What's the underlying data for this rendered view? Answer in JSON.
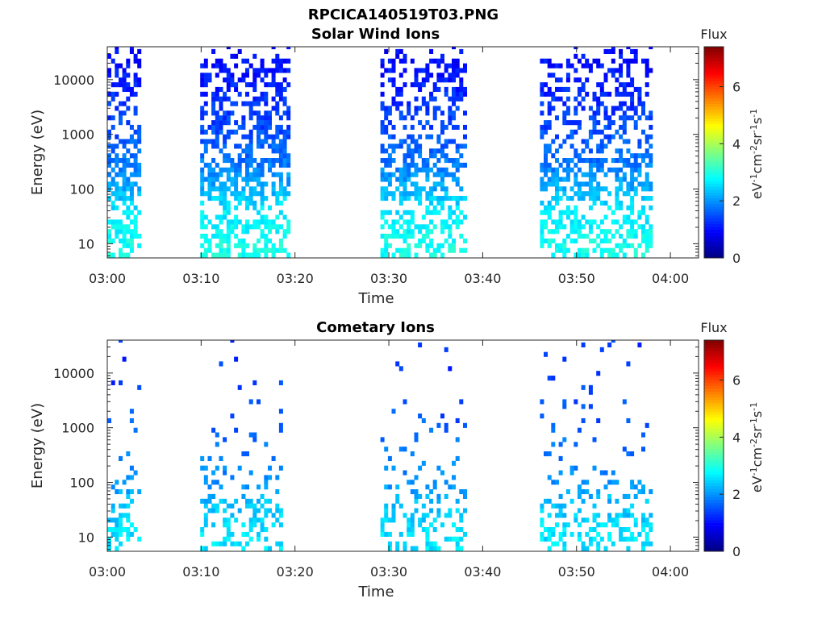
{
  "figure_title": "RPCICA140519T03.PNG",
  "chart_data": [
    {
      "type": "heatmap",
      "title": "Solar Wind Ions",
      "xlabel": "Time",
      "ylabel": "Energy (eV)",
      "x_ticks": [
        "03:00",
        "03:10",
        "03:20",
        "03:30",
        "03:40",
        "03:50",
        "04:00"
      ],
      "x_range_minutes": [
        0,
        63
      ],
      "y_scale": "log",
      "y_ticks": [
        "10",
        "100",
        "1000",
        "10000"
      ],
      "y_range": [
        5.5,
        40000
      ],
      "colorbar": {
        "title": "Flux",
        "label": "eV-1cm-2sr-1s-1",
        "ticks": [
          "0",
          "2",
          "4",
          "6"
        ],
        "range": [
          0,
          7.4
        ],
        "colormap": "jet"
      },
      "data_blocks": [
        {
          "start_min": 0.0,
          "end_min": 3.3
        },
        {
          "start_min": 9.9,
          "end_min": 19.3
        },
        {
          "start_min": 29.1,
          "end_min": 38.3
        },
        {
          "start_min": 46.1,
          "end_min": 57.8
        }
      ],
      "value_profile": [
        {
          "energy_eV": 10,
          "flux": 2.9
        },
        {
          "energy_eV": 45,
          "flux": 2.6
        },
        {
          "energy_eV": 100,
          "flux": 2.2
        },
        {
          "energy_eV": 300,
          "flux": 1.8
        },
        {
          "energy_eV": 1000,
          "flux": 1.5
        },
        {
          "energy_eV": 10000,
          "flux": 1.1
        },
        {
          "energy_eV": 40000,
          "flux": 0.9
        }
      ]
    },
    {
      "type": "heatmap",
      "title": "Cometary Ions",
      "xlabel": "Time",
      "ylabel": "Energy (eV)",
      "x_ticks": [
        "03:00",
        "03:10",
        "03:20",
        "03:30",
        "03:40",
        "03:50",
        "04:00"
      ],
      "x_range_minutes": [
        0,
        63
      ],
      "y_scale": "log",
      "y_ticks": [
        "10",
        "100",
        "1000",
        "10000"
      ],
      "y_range": [
        5.5,
        40000
      ],
      "colorbar": {
        "title": "Flux",
        "label": "eV-1cm-2sr-1s-1",
        "ticks": [
          "0",
          "2",
          "4",
          "6"
        ],
        "range": [
          0,
          7.4
        ],
        "colormap": "jet"
      },
      "data_blocks": [
        {
          "start_min": 0.0,
          "end_min": 3.3
        },
        {
          "start_min": 9.9,
          "end_min": 18.6
        },
        {
          "start_min": 29.1,
          "end_min": 38.3
        },
        {
          "start_min": 46.1,
          "end_min": 57.8
        }
      ],
      "value_profile": [
        {
          "energy_eV": 10,
          "flux": 2.6
        },
        {
          "energy_eV": 45,
          "flux": 2.3
        },
        {
          "energy_eV": 100,
          "flux": 2.0
        },
        {
          "energy_eV": 1000,
          "flux": 1.6
        },
        {
          "energy_eV": 10000,
          "flux": 1.3
        }
      ]
    }
  ]
}
